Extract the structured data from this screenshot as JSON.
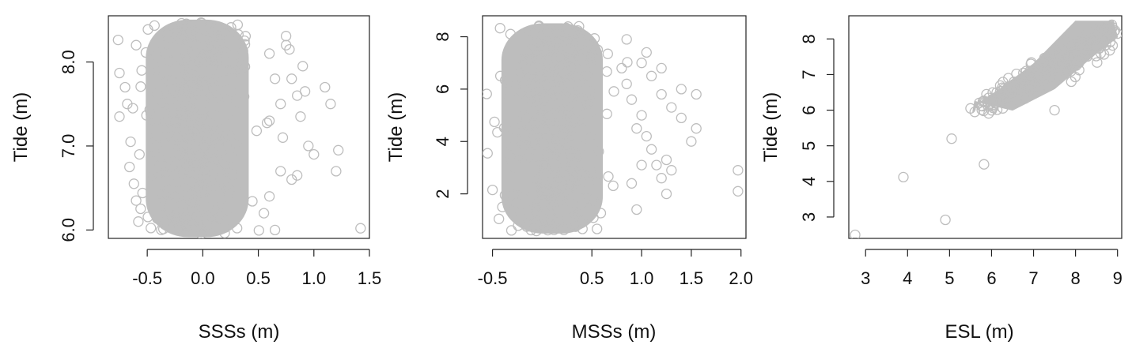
{
  "chart_data": [
    {
      "type": "scatter",
      "xlabel": "SSSs (m)",
      "ylabel": "Tide (m)",
      "xlim": [
        -0.85,
        1.5
      ],
      "ylim": [
        5.9,
        8.55
      ],
      "xticks": [
        -0.5,
        0.0,
        0.5,
        1.0,
        1.5
      ],
      "xtick_labels": [
        "-0.5",
        "0.0",
        "0.5",
        "1.0",
        "1.5"
      ],
      "yticks": [
        6.0,
        7.0,
        8.0
      ],
      "ytick_labels": [
        "6.0",
        "7.0",
        "8.0"
      ],
      "point_color": "#bdbdbd",
      "bulk": {
        "x_center": -0.05,
        "x_halfwidth": 0.5,
        "y_min": 5.92,
        "y_max": 8.5
      },
      "points": [
        [
          -0.75,
          7.35
        ],
        [
          -0.7,
          7.7
        ],
        [
          -0.68,
          7.5
        ],
        [
          -0.65,
          7.05
        ],
        [
          -0.66,
          6.75
        ],
        [
          -0.62,
          6.55
        ],
        [
          -0.6,
          6.35
        ],
        [
          -0.58,
          6.1
        ],
        [
          -0.63,
          7.45
        ],
        [
          -0.6,
          8.2
        ],
        [
          -0.55,
          7.9
        ],
        [
          -0.57,
          6.9
        ],
        [
          0.6,
          8.1
        ],
        [
          0.65,
          7.8
        ],
        [
          0.7,
          7.5
        ],
        [
          0.75,
          8.2
        ],
        [
          0.8,
          7.8
        ],
        [
          0.85,
          7.6
        ],
        [
          0.88,
          7.35
        ],
        [
          0.9,
          7.95
        ],
        [
          0.92,
          7.65
        ],
        [
          0.95,
          7.0
        ],
        [
          1.0,
          6.9
        ],
        [
          0.85,
          6.65
        ],
        [
          0.8,
          6.6
        ],
        [
          0.7,
          6.7
        ],
        [
          0.6,
          6.4
        ],
        [
          0.55,
          6.2
        ],
        [
          1.1,
          7.7
        ],
        [
          1.15,
          7.5
        ],
        [
          1.22,
          6.95
        ],
        [
          1.2,
          6.7
        ],
        [
          1.42,
          6.02
        ],
        [
          0.72,
          7.1
        ],
        [
          0.65,
          6.0
        ],
        [
          0.78,
          8.15
        ],
        [
          0.6,
          7.3
        ]
      ]
    },
    {
      "type": "scatter",
      "xlabel": "MSSs (m)",
      "ylabel": "Tide (m)",
      "xlim": [
        -0.6,
        2.05
      ],
      "ylim": [
        0.3,
        8.8
      ],
      "xticks": [
        -0.5,
        0.5,
        1.0,
        1.5,
        2.0
      ],
      "xtick_labels": [
        "-0.5",
        "0.5",
        "1.0",
        "1.5",
        "2.0"
      ],
      "yticks": [
        2,
        4,
        6,
        8
      ],
      "ytick_labels": [
        "2",
        "4",
        "6",
        "8"
      ],
      "point_color": "#bdbdbd",
      "bulk": {
        "x_center": 0.1,
        "x_halfwidth": 0.55,
        "y_min": 0.5,
        "y_max": 8.5
      },
      "points": [
        [
          -0.55,
          3.55
        ],
        [
          -0.5,
          2.15
        ],
        [
          -0.45,
          4.35
        ],
        [
          -0.48,
          4.75
        ],
        [
          -0.42,
          6.5
        ],
        [
          -0.4,
          1.5
        ],
        [
          0.8,
          6.8
        ],
        [
          0.85,
          6.2
        ],
        [
          0.9,
          5.6
        ],
        [
          0.95,
          4.5
        ],
        [
          1.0,
          5.0
        ],
        [
          1.05,
          4.2
        ],
        [
          1.1,
          3.7
        ],
        [
          1.15,
          3.1
        ],
        [
          1.2,
          2.6
        ],
        [
          1.25,
          2.0
        ],
        [
          1.05,
          7.4
        ],
        [
          1.0,
          7.0
        ],
        [
          1.1,
          6.5
        ],
        [
          1.2,
          5.8
        ],
        [
          1.3,
          5.3
        ],
        [
          1.4,
          6.0
        ],
        [
          1.4,
          4.9
        ],
        [
          1.5,
          4.0
        ],
        [
          1.55,
          5.8
        ],
        [
          1.55,
          4.5
        ],
        [
          1.25,
          3.3
        ],
        [
          1.3,
          2.9
        ],
        [
          0.9,
          2.4
        ],
        [
          0.95,
          1.4
        ],
        [
          1.97,
          2.9
        ],
        [
          1.97,
          2.1
        ],
        [
          0.85,
          7.9
        ],
        [
          1.2,
          6.8
        ],
        [
          1.0,
          3.1
        ]
      ]
    },
    {
      "type": "scatter",
      "xlabel": "ESL (m)",
      "ylabel": "Tide (m)",
      "xlim": [
        2.6,
        9.1
      ],
      "ylim": [
        2.4,
        8.65
      ],
      "xticks": [
        3,
        4,
        5,
        6,
        7,
        8,
        9
      ],
      "xtick_labels": [
        "3",
        "4",
        "5",
        "6",
        "7",
        "8",
        "9"
      ],
      "yticks": [
        3,
        4,
        5,
        6,
        7,
        8
      ],
      "ytick_labels": [
        "3",
        "4",
        "5",
        "6",
        "7",
        "8"
      ],
      "point_color": "#bdbdbd",
      "band": [
        [
          5.55,
          5.95
        ],
        [
          5.6,
          6.25
        ],
        [
          6.5,
          6.0
        ],
        [
          7.5,
          6.6
        ],
        [
          8.5,
          7.6
        ],
        [
          9.0,
          8.05
        ],
        [
          8.9,
          8.5
        ],
        [
          8.0,
          8.5
        ],
        [
          7.0,
          7.3
        ],
        [
          6.2,
          6.6
        ],
        [
          5.7,
          6.2
        ]
      ],
      "points": [
        [
          2.75,
          2.5
        ],
        [
          3.9,
          4.12
        ],
        [
          4.9,
          2.92
        ],
        [
          5.05,
          5.2
        ],
        [
          5.82,
          4.48
        ],
        [
          5.5,
          6.05
        ],
        [
          5.6,
          5.95
        ],
        [
          7.5,
          6.0
        ],
        [
          6.4,
          6.9
        ],
        [
          7.9,
          6.8
        ],
        [
          8.6,
          7.6
        ],
        [
          9.0,
          8.15
        ],
        [
          8.5,
          7.85
        ]
      ]
    }
  ]
}
